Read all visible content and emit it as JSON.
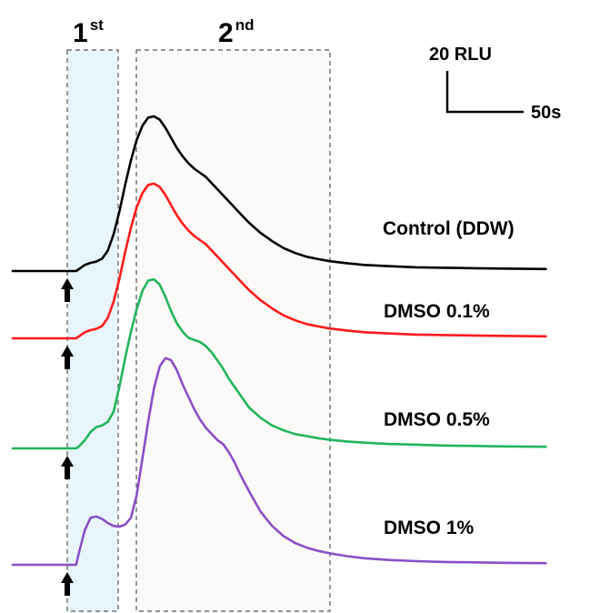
{
  "chart_data": {
    "type": "line",
    "x": [
      0,
      14,
      22,
      23,
      25,
      27,
      29,
      31,
      33,
      35,
      37,
      39,
      41,
      43,
      45,
      47,
      49,
      51,
      53,
      55,
      57,
      59,
      61,
      63,
      65,
      67,
      69,
      71,
      73,
      75,
      77,
      79,
      82,
      86,
      90,
      94,
      98,
      102,
      106,
      110,
      116,
      122,
      130,
      140,
      150,
      160,
      170,
      185
    ],
    "series": [
      {
        "name": "Control (DDW)",
        "color": "#000000",
        "values": [
          0,
          0,
          0,
          0.5,
          1.5,
          2.0,
          2.3,
          3.0,
          5.0,
          9.0,
          14.5,
          21.0,
          27.0,
          32.0,
          35.5,
          37.5,
          37.8,
          37.0,
          35.0,
          32.5,
          30.0,
          28.0,
          26.3,
          25.0,
          24.0,
          23.0,
          21.5,
          20.0,
          18.5,
          17.0,
          15.5,
          14.0,
          11.8,
          9.3,
          7.3,
          5.6,
          4.4,
          3.5,
          2.9,
          2.4,
          1.9,
          1.5,
          1.2,
          0.9,
          0.8,
          0.7,
          0.6,
          0.5
        ]
      },
      {
        "name": "DMSO 0.1%",
        "color": "#ff1a1a",
        "values": [
          0,
          0,
          0,
          0.5,
          1.5,
          2.0,
          2.3,
          3.0,
          5.0,
          9.0,
          14.5,
          21.0,
          27.0,
          32.0,
          35.5,
          37.5,
          37.8,
          37.0,
          35.0,
          32.5,
          30.0,
          28.0,
          26.3,
          25.0,
          24.0,
          23.0,
          21.5,
          20.0,
          18.5,
          17.0,
          15.5,
          14.0,
          11.8,
          9.3,
          7.3,
          5.6,
          4.4,
          3.5,
          2.9,
          2.4,
          1.9,
          1.5,
          1.2,
          0.9,
          0.8,
          0.7,
          0.6,
          0.5
        ]
      },
      {
        "name": "DMSO 0.5%",
        "color": "#22b55a",
        "values": [
          0,
          0,
          0,
          0.5,
          2.0,
          4.0,
          5.2,
          5.6,
          6.5,
          9.0,
          15.0,
          22.0,
          28.5,
          34.0,
          38.5,
          41.0,
          41.3,
          40.0,
          37.0,
          33.5,
          30.5,
          28.5,
          27.0,
          26.5,
          26.0,
          25.0,
          23.5,
          21.5,
          19.5,
          17.0,
          15.0,
          13.0,
          10.0,
          7.5,
          5.6,
          4.4,
          3.5,
          3.0,
          2.5,
          2.1,
          1.7,
          1.4,
          1.1,
          0.9,
          0.7,
          0.6,
          0.5,
          0.4
        ]
      },
      {
        "name": "DMSO 1%",
        "color": "#8a4fc8",
        "values": [
          0,
          0,
          0,
          3.0,
          8.5,
          11.5,
          11.8,
          11.2,
          10.2,
          9.5,
          9.3,
          9.8,
          11.5,
          17.0,
          26.0,
          35.0,
          43.0,
          48.5,
          50.5,
          50.0,
          47.5,
          44.0,
          41.0,
          38.0,
          35.5,
          33.5,
          32.0,
          30.5,
          29.5,
          27.5,
          25.0,
          22.0,
          18.0,
          13.0,
          9.5,
          7.0,
          5.3,
          4.2,
          3.4,
          2.8,
          2.1,
          1.6,
          1.2,
          0.9,
          0.7,
          0.6,
          0.5,
          0.4
        ]
      }
    ],
    "labels": [
      "Control (DDW)",
      "DMSO 0.1%",
      "DMSO 0.5%",
      "DMSO 1%"
    ],
    "regions": [
      {
        "label": "1",
        "sup": "st"
      },
      {
        "label": "2",
        "sup": "nd"
      }
    ],
    "scale_bar": {
      "y_label": "20 RLU",
      "x_label": "50s"
    },
    "stimulus_marker": "arrow",
    "xlabel": "",
    "ylabel": "",
    "grid": false,
    "legend": "inline-right"
  }
}
